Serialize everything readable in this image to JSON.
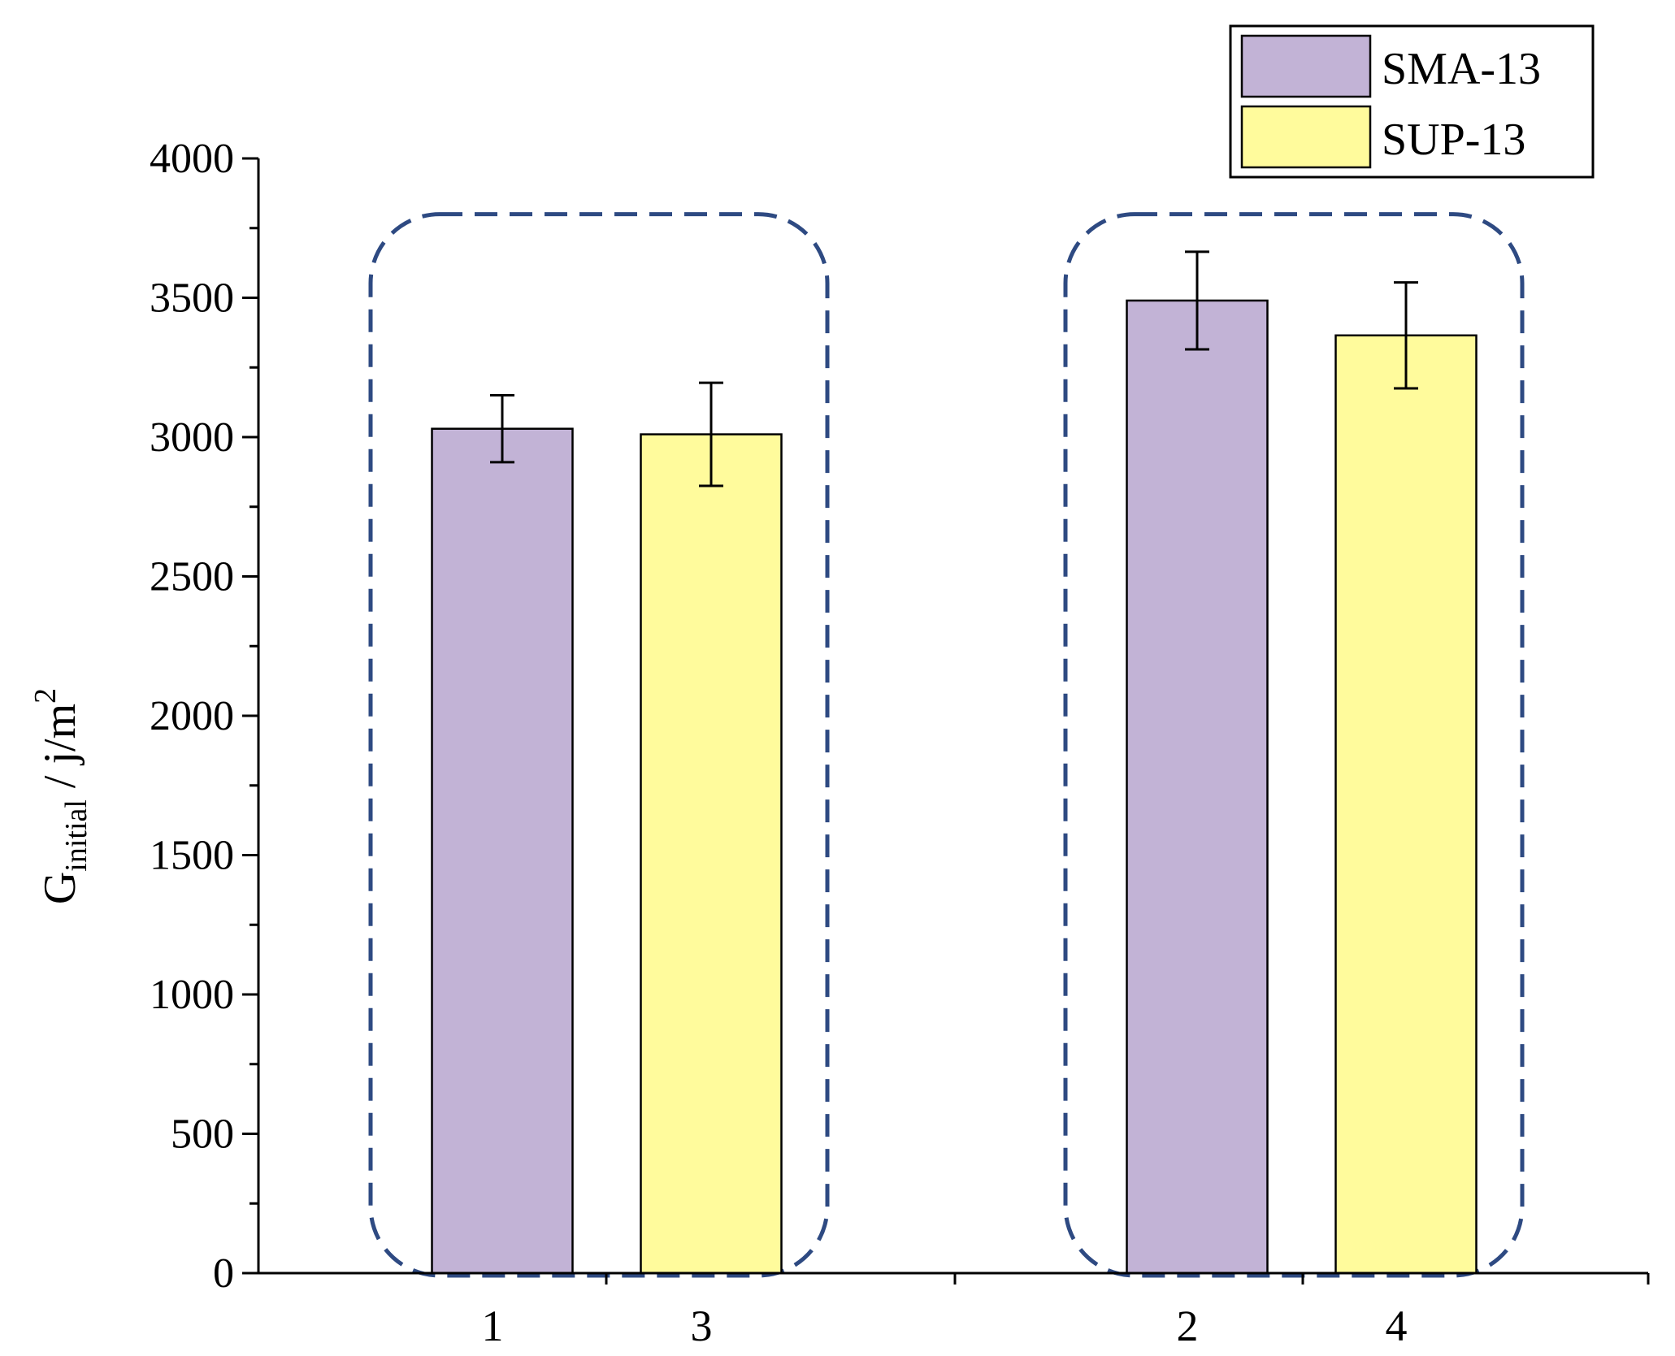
{
  "chart_data": {
    "type": "bar",
    "title": "",
    "xlabel": "",
    "ylabel": {
      "main": "G",
      "subscript": "initial",
      "unit": " / j/m",
      "superscript": "2"
    },
    "ylim": [
      0,
      4000
    ],
    "y_major_ticks": [
      0,
      500,
      1000,
      1500,
      2000,
      2500,
      3000,
      3500,
      4000
    ],
    "y_minor_step": 250,
    "x_tick_labels": [
      "1",
      "3",
      "2",
      "4"
    ],
    "series": [
      {
        "name": "SMA-13",
        "color": "#c2b3d6",
        "categories": [
          "1",
          "2"
        ],
        "values": [
          3030,
          3490
        ],
        "errors": [
          120,
          175
        ]
      },
      {
        "name": "SUP-13",
        "color": "#fffb9c",
        "categories": [
          "3",
          "4"
        ],
        "values": [
          3010,
          3365
        ],
        "errors": [
          185,
          190
        ]
      }
    ],
    "legend": {
      "placement": "top-right",
      "entries": [
        "SMA-13",
        "SUP-13"
      ]
    },
    "annotations": [
      {
        "type": "dashed-group-box",
        "encloses": [
          "1",
          "3"
        ],
        "color": "#2e4a82"
      },
      {
        "type": "dashed-group-box",
        "encloses": [
          "2",
          "4"
        ],
        "color": "#2e4a82"
      }
    ],
    "grid": false
  }
}
